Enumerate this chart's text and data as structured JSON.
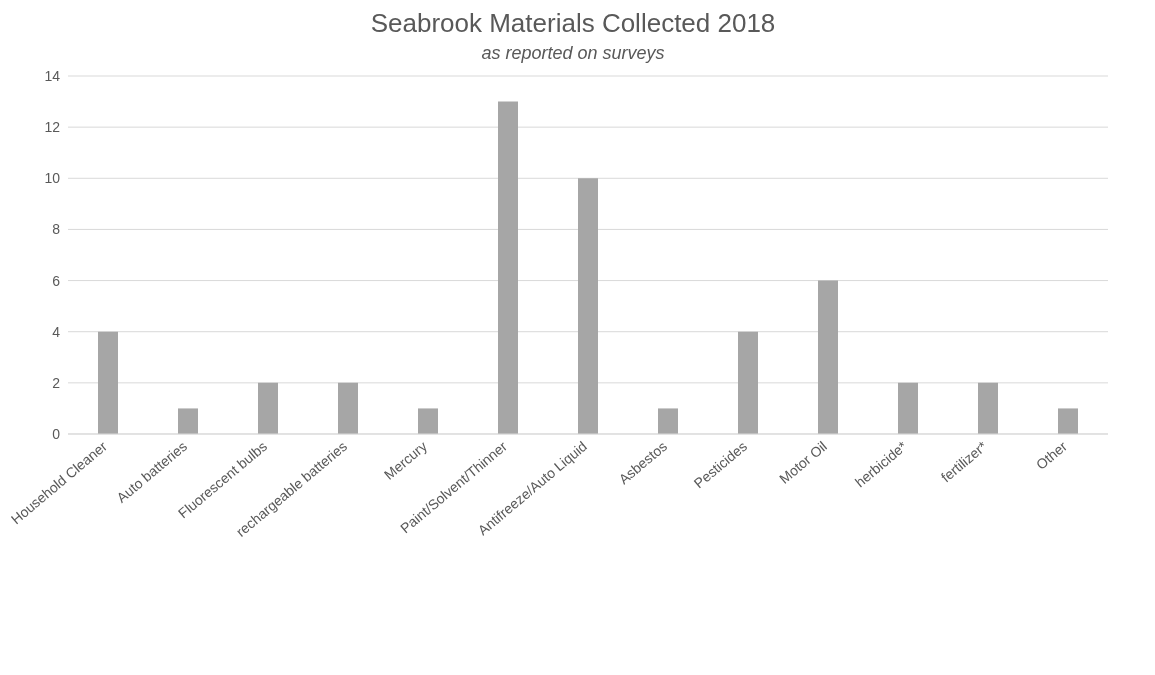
{
  "chart_data": {
    "type": "bar",
    "title": "Seabrook Materials Collected 2018",
    "subtitle": "as reported on surveys",
    "categories": [
      "Household Cleaner",
      "Auto batteries",
      "Fluorescent bulbs",
      "rechargeable batteries",
      "Mercury",
      "Paint/Solvent/Thinner",
      "Antifreeze/Auto Liquid",
      "Asbestos",
      "Pesticides",
      "Motor Oil",
      "herbicide*",
      "fertilizer*",
      "Other"
    ],
    "values": [
      4,
      1,
      2,
      2,
      1,
      13,
      10,
      1,
      4,
      6,
      2,
      2,
      1
    ],
    "color": "#a6a6a6",
    "ylim": [
      0,
      14
    ],
    "yticks": [
      0,
      2,
      4,
      6,
      8,
      10,
      12,
      14
    ],
    "grid": "y"
  }
}
